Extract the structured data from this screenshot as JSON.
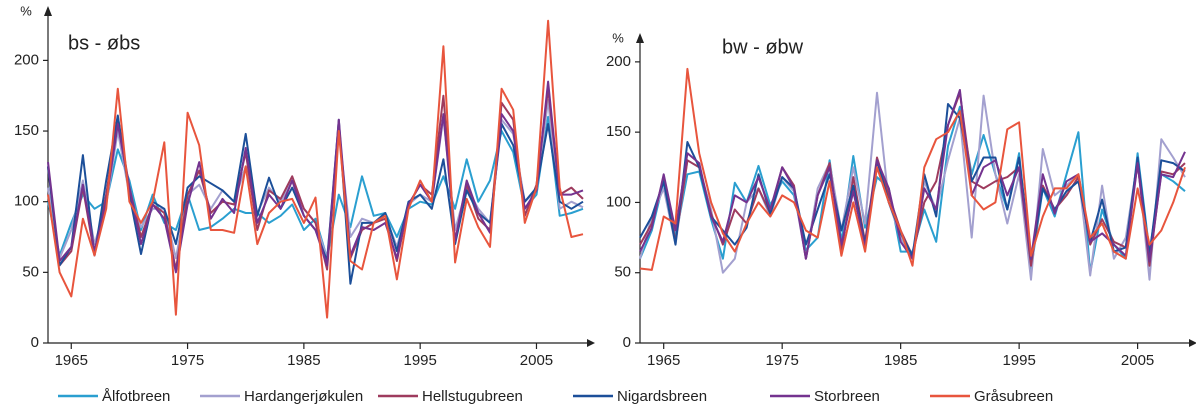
{
  "chart_data": [
    {
      "type": "line",
      "title": "bs - øbs",
      "y_label": "%",
      "x": [
        1963,
        1964,
        1965,
        1966,
        1967,
        1968,
        1969,
        1970,
        1971,
        1972,
        1973,
        1974,
        1975,
        1976,
        1977,
        1978,
        1979,
        1980,
        1981,
        1982,
        1983,
        1984,
        1985,
        1986,
        1987,
        1988,
        1989,
        1990,
        1991,
        1992,
        1993,
        1994,
        1995,
        1996,
        1997,
        1998,
        1999,
        2000,
        2001,
        2002,
        2003,
        2004,
        2005,
        2006,
        2007,
        2008,
        2009
      ],
      "xlim": [
        1963,
        2009
      ],
      "xticks": [
        1965,
        1975,
        1985,
        1995,
        2005
      ],
      "ylim": [
        0,
        230
      ],
      "yticks": [
        0,
        50,
        100,
        150,
        200
      ],
      "series": [
        {
          "name": "Ålfotbreen",
          "color": "#2a9fd0",
          "values": [
            100,
            62,
            85,
            105,
            95,
            100,
            137,
            115,
            80,
            105,
            85,
            80,
            105,
            80,
            82,
            88,
            95,
            92,
            92,
            85,
            90,
            98,
            80,
            88,
            60,
            105,
            82,
            118,
            90,
            92,
            75,
            95,
            100,
            98,
            118,
            95,
            130,
            100,
            115,
            150,
            135,
            95,
            105,
            160,
            90,
            92,
            95
          ]
        },
        {
          "name": "Hardangerjøkulen",
          "color": "#a3a0cf",
          "values": [
            110,
            60,
            80,
            115,
            70,
            98,
            150,
            105,
            82,
            95,
            95,
            60,
            105,
            112,
            95,
            108,
            100,
            125,
            92,
            110,
            100,
            115,
            95,
            85,
            60,
            150,
            75,
            88,
            85,
            90,
            68,
            98,
            105,
            100,
            160,
            80,
            110,
            95,
            85,
            158,
            148,
            100,
            108,
            172,
            95,
            100,
            96
          ]
        },
        {
          "name": "Hellstugubreen",
          "color": "#9e3b5e",
          "values": [
            125,
            55,
            65,
            110,
            62,
            105,
            160,
            110,
            75,
            98,
            92,
            52,
            105,
            122,
            92,
            100,
            98,
            135,
            80,
            108,
            102,
            118,
            95,
            85,
            52,
            155,
            60,
            80,
            85,
            88,
            58,
            98,
            112,
            105,
            175,
            72,
            112,
            88,
            80,
            170,
            158,
            90,
            112,
            180,
            105,
            110,
            102
          ]
        },
        {
          "name": "Nigardsbreen",
          "color": "#1c4f99",
          "values": [
            125,
            55,
            68,
            133,
            62,
            115,
            161,
            105,
            63,
            100,
            95,
            70,
            110,
            118,
            113,
            108,
            100,
            148,
            90,
            117,
            95,
            110,
            90,
            80,
            58,
            158,
            42,
            85,
            85,
            92,
            65,
            100,
            105,
            95,
            130,
            70,
            108,
            92,
            85,
            155,
            140,
            100,
            110,
            155,
            100,
            95,
            100
          ]
        },
        {
          "name": "Storbreen",
          "color": "#74338f",
          "values": [
            128,
            58,
            68,
            112,
            65,
            100,
            155,
            110,
            70,
            98,
            88,
            50,
            98,
            128,
            88,
            102,
            92,
            138,
            85,
            105,
            95,
            115,
            90,
            80,
            55,
            158,
            62,
            82,
            80,
            85,
            60,
            98,
            112,
            100,
            162,
            72,
            115,
            92,
            78,
            162,
            150,
            95,
            108,
            185,
            105,
            105,
            108
          ]
        },
        {
          "name": "Gråsubreen",
          "color": "#e8553d",
          "values": [
            105,
            50,
            33,
            88,
            62,
            95,
            180,
            100,
            85,
            100,
            142,
            20,
            163,
            140,
            80,
            80,
            78,
            125,
            70,
            92,
            100,
            102,
            85,
            103,
            18,
            150,
            58,
            52,
            85,
            90,
            45,
            95,
            115,
            100,
            210,
            57,
            102,
            82,
            68,
            180,
            165,
            85,
            110,
            228,
            110,
            75,
            77
          ]
        }
      ]
    },
    {
      "type": "line",
      "title": "bw - øbw",
      "y_label": "%",
      "x": [
        1963,
        1964,
        1965,
        1966,
        1967,
        1968,
        1969,
        1970,
        1971,
        1972,
        1973,
        1974,
        1975,
        1976,
        1977,
        1978,
        1979,
        1980,
        1981,
        1982,
        1983,
        1984,
        1985,
        1986,
        1987,
        1988,
        1989,
        1990,
        1991,
        1992,
        1993,
        1994,
        1995,
        1996,
        1997,
        1998,
        1999,
        2000,
        2001,
        2002,
        2003,
        2004,
        2005,
        2006,
        2007,
        2008,
        2009
      ],
      "xlim": [
        1963,
        2009
      ],
      "xticks": [
        1965,
        1975,
        1985,
        1995,
        2005
      ],
      "ylim": [
        0,
        212
      ],
      "yticks": [
        0,
        50,
        100,
        150,
        200
      ],
      "series": [
        {
          "name": "Ålfotbreen",
          "color": "#2a9fd0",
          "values": [
            60,
            80,
            115,
            75,
            120,
            122,
            88,
            60,
            114,
            100,
            126,
            98,
            115,
            105,
            66,
            75,
            130,
            72,
            133,
            82,
            118,
            110,
            65,
            65,
            95,
            72,
            140,
            168,
            120,
            148,
            120,
            95,
            135,
            52,
            110,
            90,
            120,
            150,
            50,
            95,
            70,
            60,
            135,
            65,
            120,
            115,
            108
          ]
        },
        {
          "name": "Hardangerjøkulen",
          "color": "#a3a0cf",
          "values": [
            60,
            90,
            110,
            70,
            130,
            125,
            95,
            50,
            60,
            100,
            110,
            90,
            118,
            108,
            60,
            110,
            128,
            80,
            125,
            85,
            178,
            100,
            75,
            60,
            115,
            95,
            130,
            160,
            75,
            176,
            120,
            85,
            120,
            45,
            138,
            105,
            112,
            120,
            48,
            112,
            60,
            75,
            130,
            45,
            145,
            132,
            118
          ]
        },
        {
          "name": "Hellstugubreen",
          "color": "#9e3b5e",
          "values": [
            70,
            85,
            118,
            72,
            130,
            125,
            92,
            70,
            95,
            85,
            110,
            92,
            125,
            112,
            60,
            105,
            128,
            65,
            118,
            72,
            132,
            105,
            80,
            62,
            100,
            115,
            155,
            178,
            115,
            110,
            115,
            118,
            125,
            55,
            112,
            95,
            105,
            118,
            70,
            88,
            72,
            68,
            128,
            55,
            122,
            120,
            128
          ]
        },
        {
          "name": "Nigardsbreen",
          "color": "#1c4f99",
          "values": [
            75,
            90,
            115,
            70,
            143,
            125,
            90,
            80,
            70,
            82,
            120,
            92,
            118,
            110,
            70,
            95,
            120,
            80,
            112,
            70,
            130,
            100,
            78,
            62,
            120,
            90,
            170,
            160,
            115,
            132,
            132,
            95,
            132,
            60,
            110,
            95,
            108,
            115,
            72,
            102,
            65,
            68,
            132,
            62,
            130,
            128,
            122
          ]
        },
        {
          "name": "Storbreen",
          "color": "#74338f",
          "values": [
            65,
            82,
            120,
            80,
            135,
            128,
            90,
            72,
            105,
            100,
            118,
            95,
            125,
            110,
            60,
            105,
            125,
            70,
            108,
            68,
            130,
            110,
            72,
            60,
            110,
            95,
            155,
            180,
            105,
            125,
            130,
            105,
            125,
            60,
            120,
            92,
            115,
            120,
            72,
            78,
            70,
            62,
            128,
            58,
            120,
            118,
            136
          ]
        },
        {
          "name": "Gråsubreen",
          "color": "#e8553d",
          "values": [
            53,
            52,
            90,
            85,
            195,
            135,
            100,
            78,
            65,
            85,
            100,
            90,
            105,
            100,
            80,
            75,
            115,
            62,
            100,
            65,
            125,
            100,
            80,
            55,
            125,
            145,
            150,
            165,
            105,
            95,
            100,
            152,
            157,
            62,
            90,
            110,
            110,
            120,
            75,
            85,
            65,
            60,
            110,
            70,
            80,
            100,
            125
          ]
        }
      ]
    }
  ]
}
